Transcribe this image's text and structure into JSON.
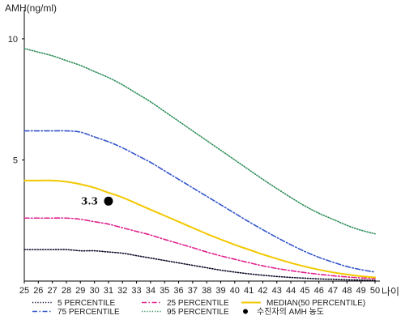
{
  "chart_data": {
    "type": "line",
    "title": "",
    "ylabel": "AMH(ng/ml)",
    "xlabel": "나이",
    "x": [
      25,
      26,
      27,
      28,
      29,
      30,
      31,
      32,
      33,
      34,
      35,
      36,
      37,
      38,
      39,
      40,
      41,
      42,
      43,
      44,
      45,
      46,
      47,
      48,
      49,
      50
    ],
    "xlim": [
      25,
      50
    ],
    "ylim": [
      0,
      11
    ],
    "yticks": [
      5,
      10
    ],
    "grid": false,
    "legend_position": "bottom",
    "series": [
      {
        "name": "5 PERCENTILE",
        "color": "#0a0a28",
        "dash": "dotted",
        "values": [
          1.3,
          1.3,
          1.3,
          1.3,
          1.25,
          1.25,
          1.2,
          1.15,
          1.05,
          0.95,
          0.85,
          0.75,
          0.65,
          0.55,
          0.45,
          0.37,
          0.3,
          0.24,
          0.19,
          0.15,
          0.12,
          0.09,
          0.07,
          0.05,
          0.04,
          0.03
        ]
      },
      {
        "name": "25 PERCENTILE",
        "color": "#e0208c",
        "dash": "dashdot",
        "values": [
          2.6,
          2.6,
          2.6,
          2.6,
          2.55,
          2.45,
          2.35,
          2.2,
          2.05,
          1.9,
          1.72,
          1.55,
          1.38,
          1.2,
          1.04,
          0.9,
          0.76,
          0.63,
          0.52,
          0.43,
          0.35,
          0.28,
          0.22,
          0.17,
          0.13,
          0.1
        ]
      },
      {
        "name": "75 PERCENTILE",
        "color": "#3355cc",
        "dash": "dashdot",
        "values": [
          6.2,
          6.2,
          6.2,
          6.2,
          6.15,
          5.95,
          5.75,
          5.5,
          5.2,
          4.9,
          4.55,
          4.2,
          3.85,
          3.5,
          3.15,
          2.8,
          2.45,
          2.12,
          1.8,
          1.5,
          1.22,
          0.98,
          0.78,
          0.6,
          0.47,
          0.37
        ]
      },
      {
        "name": "95 PERCENTILE",
        "color": "#2f8f5b",
        "dash": "dotted",
        "values": [
          9.6,
          9.45,
          9.3,
          9.1,
          8.9,
          8.65,
          8.4,
          8.1,
          7.75,
          7.4,
          7.0,
          6.6,
          6.2,
          5.8,
          5.4,
          5.0,
          4.6,
          4.2,
          3.82,
          3.45,
          3.1,
          2.8,
          2.55,
          2.3,
          2.1,
          1.95
        ]
      },
      {
        "name": "MEDIAN(50 PERCENTILE)",
        "color": "#f2c800",
        "dash": "solid",
        "values": [
          4.15,
          4.15,
          4.15,
          4.1,
          4.0,
          3.85,
          3.65,
          3.45,
          3.2,
          2.95,
          2.7,
          2.45,
          2.2,
          1.95,
          1.72,
          1.5,
          1.3,
          1.1,
          0.92,
          0.75,
          0.6,
          0.47,
          0.36,
          0.27,
          0.2,
          0.15
        ]
      }
    ],
    "point": {
      "name": "수진자의 AMH 농도",
      "x": 31,
      "y": 3.3,
      "label": "3.3",
      "color": "#000000"
    },
    "legend": [
      {
        "label": "5 PERCENTILE",
        "series": 0
      },
      {
        "label": "25 PERCENTILE",
        "series": 1
      },
      {
        "label": "MEDIAN(50 PERCENTILE)",
        "series": 4
      },
      {
        "label": "75 PERCENTILE",
        "series": 2
      },
      {
        "label": "95 PERCENTILE",
        "series": 3
      },
      {
        "label": "수진자의 AMH 농도",
        "point": true
      }
    ]
  }
}
